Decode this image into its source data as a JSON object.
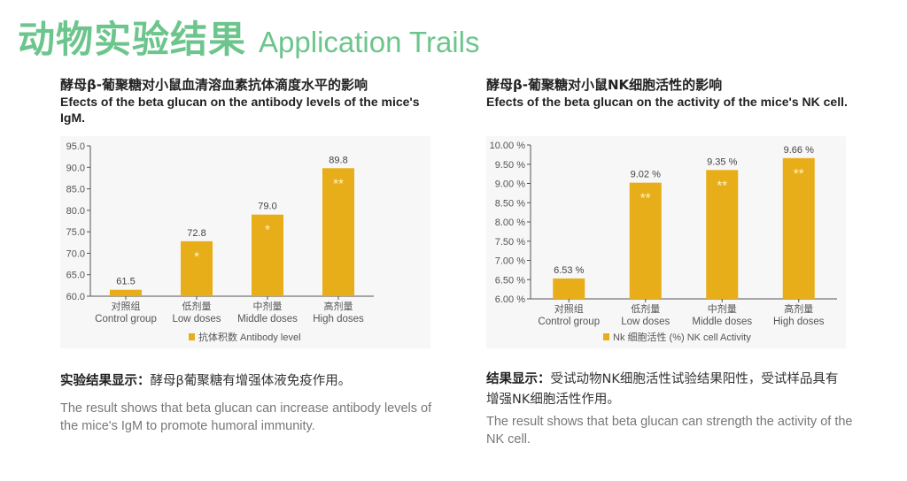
{
  "header": {
    "title_cn": "动物实验结果",
    "title_en": "Application Trails"
  },
  "colors": {
    "accent_green": "#6cc58c",
    "bar": "#e8ae19",
    "star": "#fff3c8",
    "chart_bg": "#f7f7f7"
  },
  "left": {
    "title_cn": "酵母β-葡聚糖对小鼠血清溶血素抗体滴度水平的影响",
    "title_en": "Efects of the beta glucan on the antibody levels of the mice's IgM.",
    "result_cn_label": "实验结果显示：",
    "result_cn_text": "酵母β葡聚糖有增强体液免疫作用。",
    "result_en": "The result shows that beta glucan can increase antibody levels of the mice's IgM to promote humoral immunity."
  },
  "right": {
    "title_cn": "酵母β-葡聚糖对小鼠NK细胞活性的影响",
    "title_en": "Efects of the beta glucan on the activity of the mice's NK cell.",
    "result_cn_label": "结果显示：",
    "result_cn_text": "受试动物NK细胞活性试验结果阳性，受试样品具有增强NK细胞活性作用。",
    "result_en": "The result shows that beta glucan can strength the activity of the NK cell."
  },
  "chart_data": [
    {
      "type": "bar",
      "categories_cn": [
        "对照组",
        "低剂量",
        "中剂量",
        "高剂量"
      ],
      "categories": [
        "Control group",
        "Low doses",
        "Middle doses",
        "High doses"
      ],
      "series": [
        {
          "name": "抗体积数  Antibody level",
          "values": [
            61.5,
            72.8,
            79.0,
            89.8
          ]
        }
      ],
      "data_labels": [
        "61.5",
        "72.8",
        "79.0",
        "89.8"
      ],
      "annotations": [
        "",
        "*",
        "*",
        "**"
      ],
      "yticks": [
        "60.0",
        "65.0",
        "70.0",
        "75.0",
        "80.0",
        "85.0",
        "90.0",
        "95.0"
      ],
      "ylim": [
        60,
        95
      ],
      "grid": false,
      "legend": "bottom"
    },
    {
      "type": "bar",
      "categories_cn": [
        "对照组",
        "低剂量",
        "中剂量",
        "高剂量"
      ],
      "categories": [
        "Control group",
        "Low doses",
        "Middle doses",
        "High doses"
      ],
      "series": [
        {
          "name": "Nk 细胞活性 (%) NK cell Activity",
          "values": [
            6.53,
            9.02,
            9.35,
            9.66
          ]
        }
      ],
      "data_labels": [
        "6.53 %",
        "9.02 %",
        "9.35 %",
        "9.66 %"
      ],
      "annotations": [
        "",
        "**",
        "**",
        "**"
      ],
      "yticks": [
        "6.00 %",
        "6.50 %",
        "7.00 %",
        "7.50 %",
        "8.00 %",
        "8.50 %",
        "9.00 %",
        "9.50 %",
        "10.00 %"
      ],
      "ylim": [
        6,
        10
      ],
      "grid": false,
      "legend": "bottom"
    }
  ]
}
